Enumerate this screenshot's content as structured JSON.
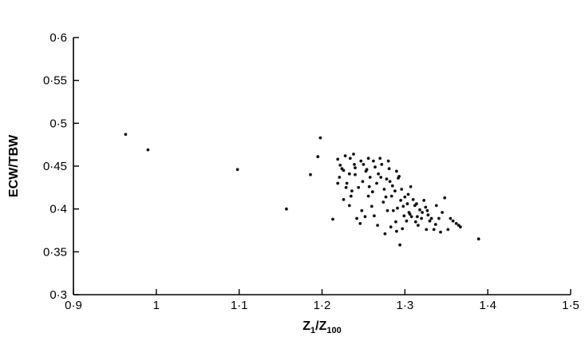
{
  "chart_data": {
    "type": "scatter",
    "title": "",
    "xlabel": "Z1/Z100",
    "xlabel_parts": {
      "main1": "Z",
      "sub1": "1",
      "sep": "/Z",
      "sub2": "100"
    },
    "ylabel": "ECW/TBW",
    "xlim": [
      0.9,
      1.5
    ],
    "ylim": [
      0.3,
      0.6
    ],
    "grid": false,
    "x_ticks": [
      0.9,
      1.0,
      1.1,
      1.2,
      1.3,
      1.4,
      1.5
    ],
    "x_tick_labels": [
      "0·9",
      "1",
      "1·1",
      "1·2",
      "1·3",
      "1·4",
      "1·5"
    ],
    "y_ticks": [
      0.3,
      0.35,
      0.4,
      0.45,
      0.5,
      0.55,
      0.6
    ],
    "y_tick_labels": [
      "0·3",
      "0·35",
      "0·4",
      "0·45",
      "0·5",
      "0·55",
      "0·6"
    ],
    "series": [
      {
        "points": [
          [
            0.963,
            0.487
          ],
          [
            0.99,
            0.469
          ],
          [
            1.098,
            0.446
          ],
          [
            1.157,
            0.4
          ],
          [
            1.198,
            0.483
          ],
          [
            1.195,
            0.461
          ],
          [
            1.186,
            0.44
          ],
          [
            1.213,
            0.388
          ],
          [
            1.219,
            0.458
          ],
          [
            1.222,
            0.451
          ],
          [
            1.226,
            0.445
          ],
          [
            1.221,
            0.437
          ],
          [
            1.228,
            0.462
          ],
          [
            1.234,
            0.459
          ],
          [
            1.238,
            0.464
          ],
          [
            1.23,
            0.43
          ],
          [
            1.233,
            0.441
          ],
          [
            1.236,
            0.421
          ],
          [
            1.24,
            0.448
          ],
          [
            1.242,
            0.389
          ],
          [
            1.247,
            0.456
          ],
          [
            1.25,
            0.452
          ],
          [
            1.253,
            0.444
          ],
          [
            1.256,
            0.459
          ],
          [
            1.258,
            0.437
          ],
          [
            1.262,
            0.456
          ],
          [
            1.264,
            0.449
          ],
          [
            1.266,
            0.43
          ],
          [
            1.268,
            0.441
          ],
          [
            1.27,
            0.459
          ],
          [
            1.272,
            0.452
          ],
          [
            1.275,
            0.423
          ],
          [
            1.277,
            0.414
          ],
          [
            1.28,
            0.456
          ],
          [
            1.282,
            0.432
          ],
          [
            1.285,
            0.427
          ],
          [
            1.288,
            0.421
          ],
          [
            1.29,
            0.444
          ],
          [
            1.292,
            0.436
          ],
          [
            1.295,
            0.41
          ],
          [
            1.298,
            0.403
          ],
          [
            1.3,
            0.414
          ],
          [
            1.303,
            0.406
          ],
          [
            1.305,
            0.396
          ],
          [
            1.308,
            0.391
          ],
          [
            1.31,
            0.411
          ],
          [
            1.312,
            0.404
          ],
          [
            1.315,
            0.391
          ],
          [
            1.318,
            0.399
          ],
          [
            1.32,
            0.389
          ],
          [
            1.323,
            0.41
          ],
          [
            1.325,
            0.402
          ],
          [
            1.328,
            0.393
          ],
          [
            1.332,
            0.389
          ],
          [
            1.335,
            0.376
          ],
          [
            1.338,
            0.404
          ],
          [
            1.341,
            0.389
          ],
          [
            1.345,
            0.396
          ],
          [
            1.348,
            0.413
          ],
          [
            1.352,
            0.376
          ],
          [
            1.355,
            0.389
          ],
          [
            1.358,
            0.386
          ],
          [
            1.362,
            0.383
          ],
          [
            1.365,
            0.381
          ],
          [
            1.367,
            0.379
          ],
          [
            1.389,
            0.365
          ],
          [
            1.294,
            0.358
          ],
          [
            1.276,
            0.371
          ],
          [
            1.283,
            0.379
          ],
          [
            1.29,
            0.374
          ],
          [
            1.297,
            0.377
          ],
          [
            1.302,
            0.386
          ],
          [
            1.246,
            0.383
          ],
          [
            1.252,
            0.391
          ],
          [
            1.256,
            0.415
          ],
          [
            1.26,
            0.403
          ],
          [
            1.235,
            0.415
          ],
          [
            1.226,
            0.411
          ],
          [
            1.233,
            0.404
          ],
          [
            1.244,
            0.425
          ],
          [
            1.249,
            0.432
          ],
          [
            1.263,
            0.392
          ],
          [
            1.267,
            0.381
          ],
          [
            1.279,
            0.398
          ],
          [
            1.286,
            0.398
          ],
          [
            1.291,
            0.401
          ],
          [
            1.307,
            0.426
          ],
          [
            1.316,
            0.381
          ],
          [
            1.321,
            0.396
          ],
          [
            1.33,
            0.386
          ],
          [
            1.337,
            0.382
          ],
          [
            1.343,
            0.373
          ],
          [
            1.224,
            0.447
          ],
          [
            1.24,
            0.44
          ],
          [
            1.254,
            0.446
          ],
          [
            1.271,
            0.437
          ],
          [
            1.278,
            0.435
          ],
          [
            1.296,
            0.423
          ],
          [
            1.304,
            0.417
          ],
          [
            1.314,
            0.406
          ],
          [
            1.219,
            0.43
          ],
          [
            1.229,
            0.425
          ],
          [
            1.261,
            0.42
          ],
          [
            1.284,
            0.415
          ],
          [
            1.299,
            0.392
          ],
          [
            1.313,
            0.385
          ],
          [
            1.326,
            0.376
          ],
          [
            1.248,
            0.398
          ],
          [
            1.274,
            0.408
          ],
          [
            1.289,
            0.385
          ],
          [
            1.306,
            0.394
          ],
          [
            1.327,
            0.398
          ],
          [
            1.239,
            0.452
          ],
          [
            1.257,
            0.426
          ],
          [
            1.281,
            0.447
          ],
          [
            1.293,
            0.438
          ]
        ]
      }
    ]
  },
  "colors": {
    "marks": "#111111",
    "axis": "#000000"
  }
}
